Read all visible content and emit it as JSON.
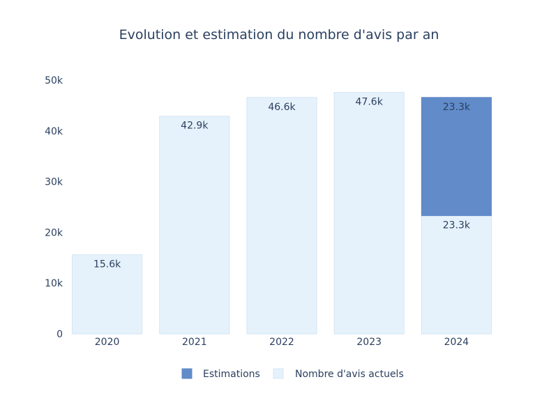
{
  "chart_data": {
    "type": "bar",
    "barmode": "stack",
    "title": "Evolution et estimation du nombre d'avis par an",
    "categories": [
      "2020",
      "2021",
      "2022",
      "2023",
      "2024"
    ],
    "series": [
      {
        "name": "Nombre d'avis actuels",
        "values": [
          15600,
          42900,
          46600,
          47600,
          23300
        ],
        "labels": [
          "15.6k",
          "42.9k",
          "46.6k",
          "47.6k",
          "23.3k"
        ],
        "color": "#e6f2fb",
        "border_color": "#d4e6f4"
      },
      {
        "name": "Estimations",
        "values": [
          0,
          0,
          0,
          0,
          23300
        ],
        "labels": [
          "",
          "",
          "",
          "",
          "23.3k"
        ],
        "color": "#618bc9",
        "border_color": "#618bc9"
      }
    ],
    "ylim": [
      0,
      50000
    ],
    "yticks": [
      {
        "value": 0,
        "label": "0"
      },
      {
        "value": 10000,
        "label": "10k"
      },
      {
        "value": 20000,
        "label": "20k"
      },
      {
        "value": 30000,
        "label": "30k"
      },
      {
        "value": 40000,
        "label": "40k"
      },
      {
        "value": 50000,
        "label": "50k"
      }
    ],
    "grid": false,
    "legend_position": "bottom-center",
    "legend_order": [
      "Estimations",
      "Nombre d'avis actuels"
    ]
  }
}
